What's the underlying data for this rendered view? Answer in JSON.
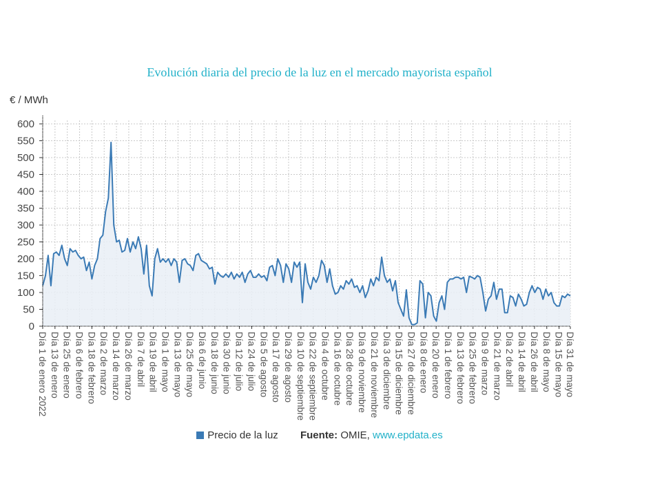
{
  "chart_data": {
    "type": "area",
    "title": "Evolución diaria del precio de la luz en el mercado mayorista español",
    "ylabel": "€ / MWh",
    "xlabel": "",
    "ylim": [
      0,
      600
    ],
    "yticks": [
      0,
      50,
      100,
      150,
      200,
      250,
      300,
      350,
      400,
      450,
      500,
      550,
      600
    ],
    "grid": true,
    "legend_position": "bottom",
    "x_range_days": [
      0,
      515
    ],
    "x_tick_days": [
      0,
      12,
      24,
      36,
      48,
      60,
      72,
      84,
      96,
      108,
      120,
      132,
      144,
      156,
      168,
      180,
      192,
      204,
      216,
      228,
      240,
      252,
      264,
      276,
      288,
      300,
      312,
      324,
      336,
      348,
      360,
      372,
      384,
      396,
      408,
      420,
      432,
      444,
      456,
      468,
      480,
      492,
      504,
      515
    ],
    "x_tick_labels": [
      "Día 1 de enero 2022",
      "Día 13 de enero",
      "Día 25 de enero",
      "Día 6 de febrero",
      "Día 18 de febrero",
      "Día 2 de marzo",
      "Día 14 de marzo",
      "Día 26 de marzo",
      "Día 7 de abril",
      "Día 19 de abril",
      "Día 1 de mayo",
      "Día 13 de mayo",
      "Día 25 de mayo",
      "Día 6 de junio",
      "Día 18 de junio",
      "Día 30 de junio",
      "Día 12 de julio",
      "Día 24 de julio",
      "Día 5 de agosto",
      "Día 17 de agosto",
      "Día 29 de agosto",
      "Día 10 de septiembre",
      "Día 22 de septiembre",
      "Día 4 de octubre",
      "Día 16 de octubre",
      "Día 28 de octubre",
      "Día 9 de noviembre",
      "Día 21 de noviembre",
      "Día 3 de diciembre",
      "Día 15 de diciembre",
      "Día 27 de diciembre",
      "Día 8 de enero",
      "Día 20 de enero",
      "Día 1 de febrero",
      "Día 13 de febrero",
      "Día 25 de febrero",
      "Día 9 de marzo",
      "Día 21 de marzo",
      "Día 2 de abril",
      "Día 14 de abril",
      "Día 26 de abril",
      "Día 8 de mayo",
      "Día 15 de mayo",
      "Día 31 de mayo"
    ],
    "series": [
      {
        "name": "Precio de la luz",
        "color": "#3a7ab5",
        "values": [
          120,
          150,
          210,
          120,
          215,
          220,
          210,
          240,
          200,
          180,
          230,
          220,
          225,
          210,
          200,
          205,
          165,
          190,
          140,
          180,
          200,
          260,
          270,
          340,
          380,
          545,
          300,
          250,
          255,
          220,
          225,
          260,
          220,
          250,
          230,
          265,
          230,
          155,
          240,
          120,
          90,
          200,
          230,
          190,
          200,
          190,
          200,
          180,
          200,
          190,
          130,
          195,
          200,
          185,
          180,
          165,
          210,
          215,
          195,
          190,
          185,
          170,
          175,
          125,
          160,
          150,
          145,
          155,
          145,
          160,
          140,
          155,
          145,
          160,
          130,
          155,
          165,
          145,
          145,
          155,
          145,
          150,
          135,
          175,
          180,
          150,
          200,
          180,
          130,
          185,
          170,
          130,
          190,
          175,
          190,
          70,
          185,
          130,
          110,
          145,
          130,
          150,
          195,
          180,
          130,
          170,
          120,
          95,
          100,
          120,
          110,
          135,
          125,
          140,
          115,
          120,
          100,
          120,
          85,
          105,
          140,
          120,
          145,
          135,
          205,
          150,
          130,
          140,
          105,
          135,
          70,
          50,
          30,
          108,
          25,
          5,
          5,
          10,
          135,
          125,
          25,
          100,
          90,
          30,
          15,
          70,
          90,
          50,
          130,
          140,
          140,
          145,
          145,
          140,
          145,
          100,
          148,
          145,
          140,
          150,
          145,
          100,
          45,
          80,
          90,
          130,
          80,
          110,
          110,
          40,
          40,
          90,
          85,
          60,
          95,
          80,
          60,
          65,
          100,
          120,
          100,
          115,
          110,
          80,
          110,
          90,
          100,
          70,
          60,
          60,
          90,
          85,
          95,
          90
        ]
      }
    ],
    "legend": [
      "Precio de la luz"
    ]
  },
  "footer": {
    "source_label": "Fuente:",
    "source_value": "OMIE,",
    "source_link": "www.epdata.es"
  }
}
